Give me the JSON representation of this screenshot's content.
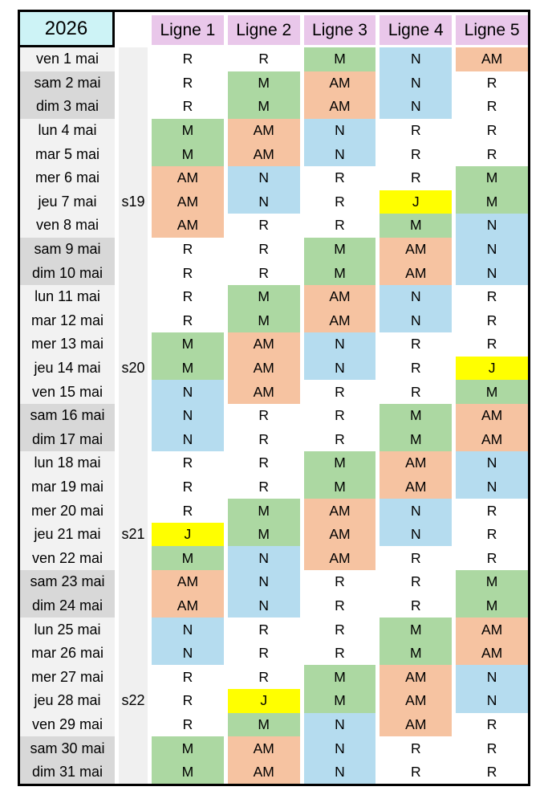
{
  "table": {
    "year": "2026",
    "columns": [
      "Ligne 1",
      "Ligne 2",
      "Ligne 3",
      "Ligne 4",
      "Ligne 5"
    ],
    "shift_codes": {
      "R": {
        "label": "R",
        "color": "#FFFFFF"
      },
      "M": {
        "label": "M",
        "color": "#ACD8A2"
      },
      "AM": {
        "label": "AM",
        "color": "#F6C3A1"
      },
      "N": {
        "label": "N",
        "color": "#B5DCEF"
      },
      "J": {
        "label": "J",
        "color": "#FFFF00"
      }
    },
    "colors": {
      "year_bg": "#CDF3F6",
      "header_bg": "#E9C7EA",
      "weekday_bg": "#F2F2F2",
      "weekend_bg": "#D8D8D8",
      "week_col_bg": "#F0F0F0",
      "border": "#000000",
      "text": "#000000"
    },
    "rows": [
      {
        "date": "ven 1 mai",
        "week": "",
        "weekend": false,
        "shifts": [
          "R",
          "R",
          "M",
          "N",
          "AM"
        ]
      },
      {
        "date": "sam 2 mai",
        "week": "",
        "weekend": true,
        "shifts": [
          "R",
          "M",
          "AM",
          "N",
          "R"
        ]
      },
      {
        "date": "dim 3 mai",
        "week": "",
        "weekend": true,
        "shifts": [
          "R",
          "M",
          "AM",
          "N",
          "R"
        ]
      },
      {
        "date": "lun 4 mai",
        "week": "",
        "weekend": false,
        "shifts": [
          "M",
          "AM",
          "N",
          "R",
          "R"
        ]
      },
      {
        "date": "mar 5 mai",
        "week": "",
        "weekend": false,
        "shifts": [
          "M",
          "AM",
          "N",
          "R",
          "R"
        ]
      },
      {
        "date": "mer 6 mai",
        "week": "",
        "weekend": false,
        "shifts": [
          "AM",
          "N",
          "R",
          "R",
          "M"
        ]
      },
      {
        "date": "jeu 7 mai",
        "week": "s19",
        "weekend": false,
        "shifts": [
          "AM",
          "N",
          "R",
          "J",
          "M"
        ]
      },
      {
        "date": "ven 8 mai",
        "week": "",
        "weekend": false,
        "shifts": [
          "AM",
          "R",
          "R",
          "M",
          "N"
        ]
      },
      {
        "date": "sam 9 mai",
        "week": "",
        "weekend": true,
        "shifts": [
          "R",
          "R",
          "M",
          "AM",
          "N"
        ]
      },
      {
        "date": "dim 10 mai",
        "week": "",
        "weekend": true,
        "shifts": [
          "R",
          "R",
          "M",
          "AM",
          "N"
        ]
      },
      {
        "date": "lun 11 mai",
        "week": "",
        "weekend": false,
        "shifts": [
          "R",
          "M",
          "AM",
          "N",
          "R"
        ]
      },
      {
        "date": "mar 12 mai",
        "week": "",
        "weekend": false,
        "shifts": [
          "R",
          "M",
          "AM",
          "N",
          "R"
        ]
      },
      {
        "date": "mer 13 mai",
        "week": "",
        "weekend": false,
        "shifts": [
          "M",
          "AM",
          "N",
          "R",
          "R"
        ]
      },
      {
        "date": "jeu 14 mai",
        "week": "s20",
        "weekend": false,
        "shifts": [
          "M",
          "AM",
          "N",
          "R",
          "J"
        ]
      },
      {
        "date": "ven 15 mai",
        "week": "",
        "weekend": false,
        "shifts": [
          "N",
          "AM",
          "R",
          "R",
          "M"
        ]
      },
      {
        "date": "sam 16 mai",
        "week": "",
        "weekend": true,
        "shifts": [
          "N",
          "R",
          "R",
          "M",
          "AM"
        ]
      },
      {
        "date": "dim 17 mai",
        "week": "",
        "weekend": true,
        "shifts": [
          "N",
          "R",
          "R",
          "M",
          "AM"
        ]
      },
      {
        "date": "lun 18 mai",
        "week": "",
        "weekend": false,
        "shifts": [
          "R",
          "R",
          "M",
          "AM",
          "N"
        ]
      },
      {
        "date": "mar 19 mai",
        "week": "",
        "weekend": false,
        "shifts": [
          "R",
          "R",
          "M",
          "AM",
          "N"
        ]
      },
      {
        "date": "mer 20 mai",
        "week": "",
        "weekend": false,
        "shifts": [
          "R",
          "M",
          "AM",
          "N",
          "R"
        ]
      },
      {
        "date": "jeu 21 mai",
        "week": "s21",
        "weekend": false,
        "shifts": [
          "J",
          "M",
          "AM",
          "N",
          "R"
        ]
      },
      {
        "date": "ven 22 mai",
        "week": "",
        "weekend": false,
        "shifts": [
          "M",
          "N",
          "AM",
          "R",
          "R"
        ]
      },
      {
        "date": "sam 23 mai",
        "week": "",
        "weekend": true,
        "shifts": [
          "AM",
          "N",
          "R",
          "R",
          "M"
        ]
      },
      {
        "date": "dim 24 mai",
        "week": "",
        "weekend": true,
        "shifts": [
          "AM",
          "N",
          "R",
          "R",
          "M"
        ]
      },
      {
        "date": "lun 25 mai",
        "week": "",
        "weekend": false,
        "shifts": [
          "N",
          "R",
          "R",
          "M",
          "AM"
        ]
      },
      {
        "date": "mar 26 mai",
        "week": "",
        "weekend": false,
        "shifts": [
          "N",
          "R",
          "R",
          "M",
          "AM"
        ]
      },
      {
        "date": "mer 27 mai",
        "week": "",
        "weekend": false,
        "shifts": [
          "R",
          "R",
          "M",
          "AM",
          "N"
        ]
      },
      {
        "date": "jeu 28 mai",
        "week": "s22",
        "weekend": false,
        "shifts": [
          "R",
          "J",
          "M",
          "AM",
          "N"
        ]
      },
      {
        "date": "ven 29 mai",
        "week": "",
        "weekend": false,
        "shifts": [
          "R",
          "M",
          "N",
          "AM",
          "R"
        ]
      },
      {
        "date": "sam 30 mai",
        "week": "",
        "weekend": true,
        "shifts": [
          "M",
          "AM",
          "N",
          "R",
          "R"
        ]
      },
      {
        "date": "dim 31 mai",
        "week": "",
        "weekend": true,
        "shifts": [
          "M",
          "AM",
          "N",
          "R",
          "R"
        ]
      }
    ]
  }
}
